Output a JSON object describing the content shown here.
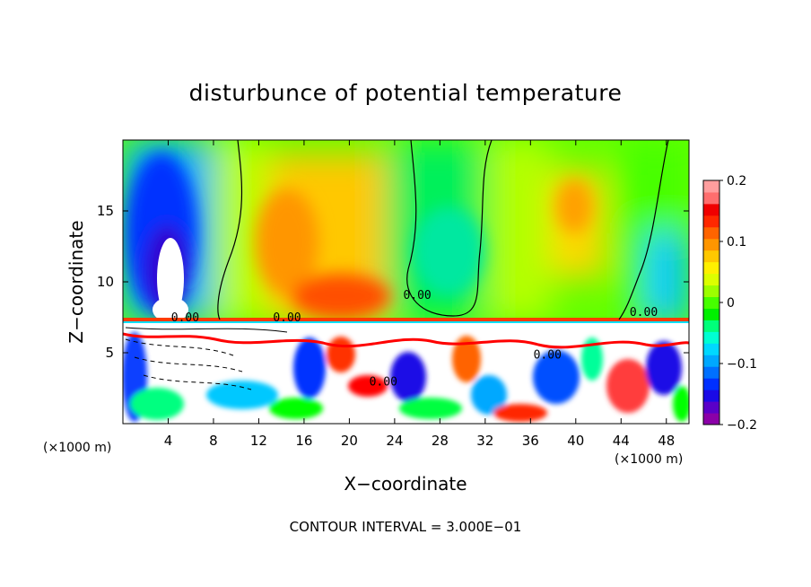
{
  "chart_data": {
    "type": "heatmap",
    "title": "disturbunce of potential temperature",
    "xlabel": "X−coordinate",
    "ylabel": "Z−coordinate",
    "x_unit_label_left": "(×1000 m)",
    "x_unit_label_right": "(×1000 m)",
    "xlim": [
      0,
      50
    ],
    "ylim": [
      0,
      20
    ],
    "x_ticks": [
      4,
      8,
      12,
      16,
      20,
      24,
      28,
      32,
      36,
      40,
      44,
      48
    ],
    "y_ticks": [
      5,
      10,
      15
    ],
    "colorbar": {
      "range": [
        -0.2,
        0.2
      ],
      "ticks": [
        {
          "value": 0.2,
          "label": "0.2"
        },
        {
          "value": 0.1,
          "label": "0.1"
        },
        {
          "value": 0,
          "label": "0"
        },
        {
          "value": -0.1,
          "label": "−0.1"
        },
        {
          "value": -0.2,
          "label": "−0.2"
        }
      ],
      "colors": [
        "#8b00a8",
        "#5a00c8",
        "#1a0ae6",
        "#0030ff",
        "#0070ff",
        "#00a8ff",
        "#00d8ff",
        "#00ffd2",
        "#00ff7a",
        "#00f000",
        "#46ff00",
        "#9cff00",
        "#dcff00",
        "#fff000",
        "#ffc800",
        "#ff9600",
        "#ff6400",
        "#ff2800",
        "#f00000",
        "#ff6e6e",
        "#ff9e9e"
      ]
    },
    "contour_labels": [
      {
        "text": "0.00",
        "x": 5.5,
        "z": 7.2
      },
      {
        "text": "0.00",
        "x": 14.5,
        "z": 7.2
      },
      {
        "text": "0.00",
        "x": 26,
        "z": 8.8
      },
      {
        "text": "0.00",
        "x": 46,
        "z": 7.6
      },
      {
        "text": "0.00",
        "x": 23,
        "z": 2.7
      },
      {
        "text": "0.00",
        "x": 37.5,
        "z": 4.6
      }
    ],
    "upper_region": [
      {
        "x": 2.6,
        "z": 16,
        "value": -0.15
      },
      {
        "x": 4.5,
        "z": 11,
        "value": -0.3
      },
      {
        "x": 11,
        "z": 16,
        "value": 0.03
      },
      {
        "x": 15,
        "z": 13,
        "value": 0.12
      },
      {
        "x": 18,
        "z": 9,
        "value": 0.18
      },
      {
        "x": 28,
        "z": 14,
        "value": -0.01
      },
      {
        "x": 39,
        "z": 14,
        "value": 0.08
      },
      {
        "x": 49,
        "z": 10,
        "value": -0.08
      }
    ],
    "footnote": "CONTOUR INTERVAL = 3.000E−01"
  }
}
